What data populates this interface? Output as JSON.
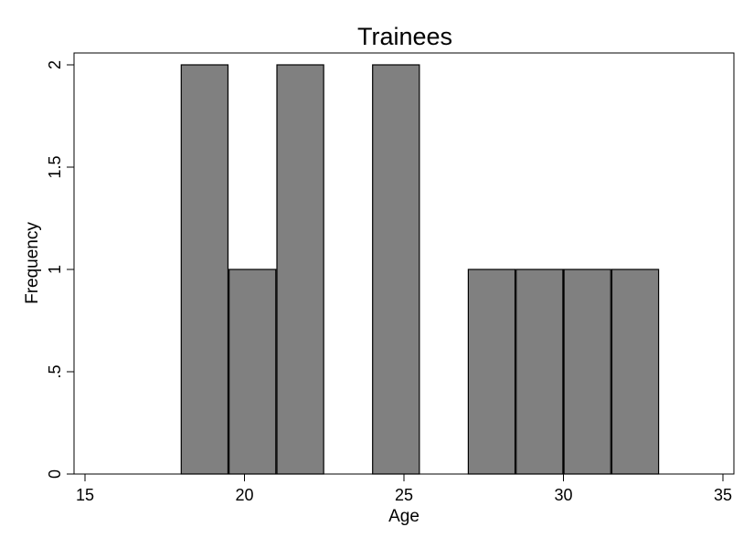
{
  "chart_data": {
    "type": "bar",
    "title": "Trainees",
    "xlabel": "Age",
    "ylabel": "Frequency",
    "xlim": [
      15,
      35
    ],
    "ylim": [
      0,
      2
    ],
    "xticks": [
      15,
      20,
      25,
      30,
      35
    ],
    "xtick_labels": [
      "15",
      "20",
      "25",
      "30",
      "35"
    ],
    "yticks": [
      0,
      0.5,
      1,
      1.5,
      2
    ],
    "ytick_labels": [
      "0",
      ".5",
      "1",
      "1.5",
      "2"
    ],
    "grid": false,
    "bins": [
      {
        "x0": 18.0,
        "x1": 19.5,
        "value": 2
      },
      {
        "x0": 19.5,
        "x1": 21.0,
        "value": 1
      },
      {
        "x0": 21.0,
        "x1": 22.5,
        "value": 2
      },
      {
        "x0": 24.0,
        "x1": 25.5,
        "value": 2
      },
      {
        "x0": 27.0,
        "x1": 28.5,
        "value": 1
      },
      {
        "x0": 28.5,
        "x1": 30.0,
        "value": 1
      },
      {
        "x0": 30.0,
        "x1": 31.5,
        "value": 1
      },
      {
        "x0": 31.5,
        "x1": 33.0,
        "value": 1
      }
    ],
    "colors": {
      "bar_fill": "#808080",
      "bar_stroke": "#000000"
    }
  }
}
